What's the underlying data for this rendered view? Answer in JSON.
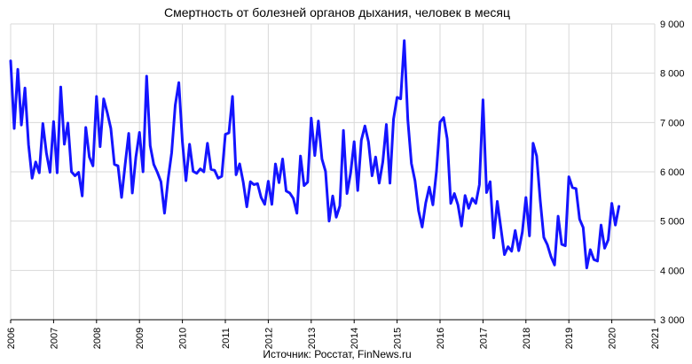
{
  "chart_data": {
    "type": "line",
    "title": "Смертность от болезней органов дыхания, человек в месяц",
    "source": "Источник: Росстат, FinNews.ru",
    "xlabel": "",
    "ylabel": "",
    "x_ticks": [
      "2006",
      "2007",
      "2008",
      "2009",
      "2010",
      "2011",
      "2012",
      "2013",
      "2014",
      "2015",
      "2016",
      "2017",
      "2018",
      "2019",
      "2020",
      "2021"
    ],
    "y_ticks": [
      "3 000",
      "4 000",
      "5 000",
      "6 000",
      "7 000",
      "8 000",
      "9 000"
    ],
    "xlim": [
      2006,
      2021
    ],
    "ylim": [
      3000,
      9000
    ],
    "grid": true,
    "legend": "none",
    "y_axis_side": "right",
    "series_color": "#1414ff",
    "series": [
      {
        "start": "2006-01",
        "frequency": "monthly",
        "values": [
          8250,
          6880,
          8080,
          6950,
          7700,
          6550,
          5870,
          6200,
          5980,
          6980,
          6380,
          5990,
          7020,
          5980,
          7720,
          6560,
          6990,
          6000,
          5920,
          5990,
          5510,
          6900,
          6300,
          6120,
          7530,
          6510,
          7480,
          7200,
          6880,
          6150,
          6120,
          5480,
          6150,
          6780,
          5570,
          6300,
          6800,
          6000,
          7940,
          6530,
          6150,
          5990,
          5800,
          5160,
          5850,
          6390,
          7350,
          7810,
          6610,
          5820,
          6560,
          6010,
          5970,
          6060,
          6000,
          6580,
          6050,
          6030,
          5870,
          5910,
          6760,
          6790,
          7530,
          5940,
          6160,
          5790,
          5290,
          5800,
          5740,
          5760,
          5480,
          5340,
          5810,
          5340,
          6160,
          5780,
          6260,
          5610,
          5570,
          5460,
          5160,
          6320,
          5720,
          5790,
          7090,
          6330,
          7030,
          6260,
          6010,
          5000,
          5510,
          5080,
          5310,
          6840,
          5560,
          5970,
          6610,
          5620,
          6640,
          6930,
          6610,
          5920,
          6300,
          5770,
          6200,
          6960,
          5770,
          7070,
          7510,
          7480,
          8660,
          7050,
          6170,
          5820,
          5210,
          4880,
          5370,
          5690,
          5330,
          6010,
          7010,
          7100,
          6670,
          5360,
          5560,
          5330,
          4900,
          5520,
          5260,
          5460,
          5360,
          5740,
          7460,
          5580,
          5800,
          4660,
          5400,
          4860,
          4320,
          4480,
          4390,
          4810,
          4400,
          4780,
          5480,
          4700,
          6580,
          6320,
          5420,
          4670,
          4520,
          4280,
          4110,
          5100,
          4530,
          4500,
          5900,
          5680,
          5660,
          5040,
          4870,
          4050,
          4420,
          4220,
          4190,
          4920,
          4450,
          4620,
          5360,
          4920,
          5300
        ]
      }
    ]
  }
}
